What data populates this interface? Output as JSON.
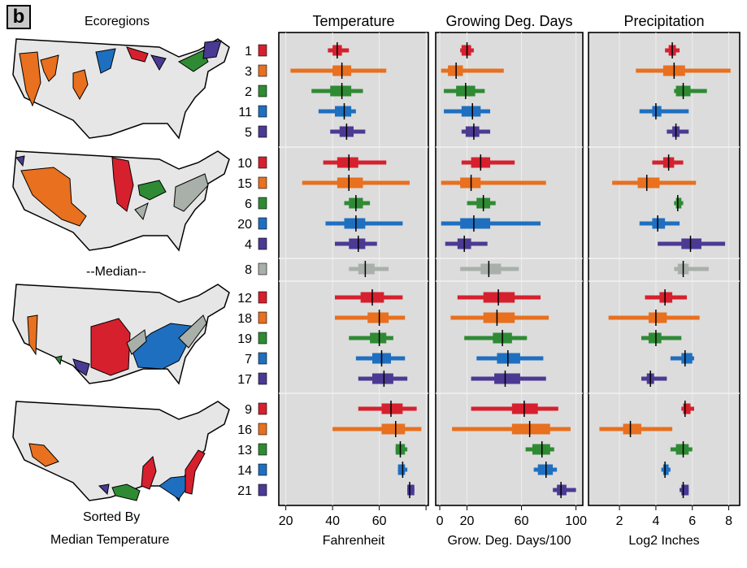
{
  "panel_letter": "b",
  "maps_title": "Ecoregions",
  "median_label": "--Median--",
  "sort_caption_1": "Sorted By",
  "sort_caption_2": "Median Temperature",
  "colors": {
    "red": "#d6202e",
    "orange": "#e8701f",
    "green": "#2f8a34",
    "blue": "#1f6fc0",
    "purple": "#4b3a93",
    "gray": "#a9b0aa",
    "panel_bg": "#dcdcdc",
    "map_fill": "#e6e6e6"
  },
  "chart_data": {
    "type": "interval",
    "groups": [
      {
        "ids": [
          "1",
          "3",
          "2",
          "11",
          "5"
        ],
        "colors": [
          "red",
          "orange",
          "green",
          "blue",
          "purple"
        ]
      },
      {
        "ids": [
          "10",
          "15",
          "6",
          "20",
          "4"
        ],
        "colors": [
          "red",
          "orange",
          "green",
          "blue",
          "purple"
        ]
      },
      {
        "ids": [
          "8"
        ],
        "colors": [
          "gray"
        ]
      },
      {
        "ids": [
          "12",
          "18",
          "19",
          "7",
          "17"
        ],
        "colors": [
          "red",
          "orange",
          "green",
          "blue",
          "purple"
        ]
      },
      {
        "ids": [
          "9",
          "16",
          "13",
          "14",
          "21"
        ],
        "colors": [
          "red",
          "orange",
          "green",
          "blue",
          "purple"
        ]
      }
    ],
    "panels": [
      {
        "title": "Temperature",
        "xlabel": "Fahrenheit",
        "xlim": [
          17,
          81
        ],
        "ticks": [
          20,
          40,
          60,
          80
        ],
        "tick_labels": [
          "20",
          "40",
          "60",
          ""
        ],
        "intervals": {
          "1": [
            38,
            40,
            44,
            42,
            47
          ],
          "3": [
            22,
            40,
            48,
            44,
            63
          ],
          "2": [
            31,
            39,
            48,
            44,
            53
          ],
          "11": [
            34,
            41,
            48,
            45,
            50
          ],
          "5": [
            39,
            43,
            49,
            46,
            54
          ],
          "10": [
            36,
            42,
            51,
            47,
            63
          ],
          "15": [
            27,
            42,
            53,
            47,
            73
          ],
          "6": [
            45,
            47,
            53,
            50,
            56
          ],
          "20": [
            37,
            45,
            54,
            50,
            70
          ],
          "4": [
            41,
            47,
            54,
            51,
            59
          ],
          "8": [
            47,
            51,
            58,
            54,
            64
          ],
          "12": [
            41,
            52,
            62,
            57,
            70
          ],
          "18": [
            41,
            55,
            64,
            60,
            71
          ],
          "19": [
            47,
            56,
            63,
            60,
            66
          ],
          "7": [
            50,
            57,
            65,
            61,
            71
          ],
          "17": [
            51,
            57,
            66,
            62,
            72
          ],
          "9": [
            51,
            61,
            70,
            65,
            76
          ],
          "16": [
            40,
            61,
            71,
            67,
            78
          ],
          "13": [
            67,
            67,
            71,
            69,
            72
          ],
          "14": [
            68,
            68,
            71,
            70,
            72
          ],
          "21": [
            72,
            72,
            75,
            73,
            75
          ]
        }
      },
      {
        "title": "Growing Deg. Days",
        "xlabel": "Grow. Deg. Days/100",
        "xlim": [
          -3,
          105
        ],
        "ticks": [
          0,
          20,
          60,
          100
        ],
        "tick_labels": [
          "0",
          "20",
          "60",
          "100"
        ],
        "intervals": {
          "1": [
            15,
            16,
            23,
            20,
            25
          ],
          "3": [
            1,
            6,
            17,
            12,
            47
          ],
          "2": [
            3,
            12,
            26,
            19,
            33
          ],
          "11": [
            3,
            16,
            30,
            24,
            37
          ],
          "5": [
            16,
            19,
            29,
            25,
            37
          ],
          "10": [
            16,
            23,
            37,
            30,
            55
          ],
          "15": [
            1,
            15,
            30,
            23,
            78
          ],
          "6": [
            20,
            27,
            37,
            32,
            41
          ],
          "20": [
            1,
            15,
            37,
            25,
            74
          ],
          "4": [
            4,
            13,
            23,
            18,
            35
          ],
          "8": [
            15,
            30,
            45,
            36,
            58
          ],
          "12": [
            13,
            32,
            55,
            43,
            74
          ],
          "18": [
            8,
            32,
            55,
            42,
            80
          ],
          "19": [
            18,
            39,
            53,
            46,
            64
          ],
          "7": [
            27,
            42,
            59,
            50,
            76
          ],
          "17": [
            23,
            40,
            59,
            48,
            78
          ],
          "9": [
            23,
            53,
            72,
            62,
            87
          ],
          "16": [
            9,
            53,
            81,
            66,
            96
          ],
          "13": [
            63,
            68,
            81,
            75,
            84
          ],
          "14": [
            69,
            72,
            83,
            78,
            86
          ],
          "21": [
            83,
            86,
            93,
            89,
            100
          ]
        }
      },
      {
        "title": "Precipitation",
        "xlabel": "Log2 Inches",
        "xlim": [
          0.3,
          8.6
        ],
        "ticks": [
          2,
          4,
          6,
          8
        ],
        "tick_labels": [
          "2",
          "4",
          "6",
          "8"
        ],
        "intervals": {
          "1": [
            4.5,
            4.7,
            5.1,
            4.9,
            5.3
          ],
          "3": [
            2.9,
            4.4,
            5.6,
            5.0,
            8.1
          ],
          "2": [
            5.0,
            5.1,
            5.9,
            5.5,
            6.8
          ],
          "11": [
            3.1,
            3.8,
            4.3,
            4.0,
            5.8
          ],
          "5": [
            4.6,
            4.9,
            5.3,
            5.1,
            5.8
          ],
          "10": [
            3.8,
            4.4,
            5.0,
            4.7,
            5.5
          ],
          "15": [
            1.6,
            3.0,
            4.2,
            3.5,
            6.2
          ],
          "6": [
            5.0,
            5.1,
            5.4,
            5.2,
            5.5
          ],
          "20": [
            3.1,
            3.8,
            4.5,
            4.1,
            5.3
          ],
          "4": [
            4.1,
            5.4,
            6.5,
            5.9,
            7.8
          ],
          "8": [
            5.0,
            5.2,
            5.8,
            5.5,
            6.9
          ],
          "12": [
            3.4,
            4.2,
            4.9,
            4.5,
            5.7
          ],
          "18": [
            1.4,
            3.6,
            4.6,
            4.0,
            6.4
          ],
          "19": [
            3.2,
            3.6,
            4.3,
            4.0,
            5.4
          ],
          "7": [
            4.8,
            5.4,
            6.0,
            5.6,
            6.1
          ],
          "17": [
            3.2,
            3.5,
            3.9,
            3.7,
            4.6
          ],
          "9": [
            5.4,
            5.5,
            5.9,
            5.6,
            6.1
          ],
          "16": [
            0.9,
            2.2,
            3.2,
            2.6,
            4.9
          ],
          "13": [
            4.8,
            5.1,
            5.8,
            5.5,
            6.0
          ],
          "14": [
            4.3,
            4.4,
            4.7,
            4.5,
            4.8
          ],
          "21": [
            5.3,
            5.4,
            5.8,
            5.5,
            5.8
          ]
        }
      }
    ]
  }
}
